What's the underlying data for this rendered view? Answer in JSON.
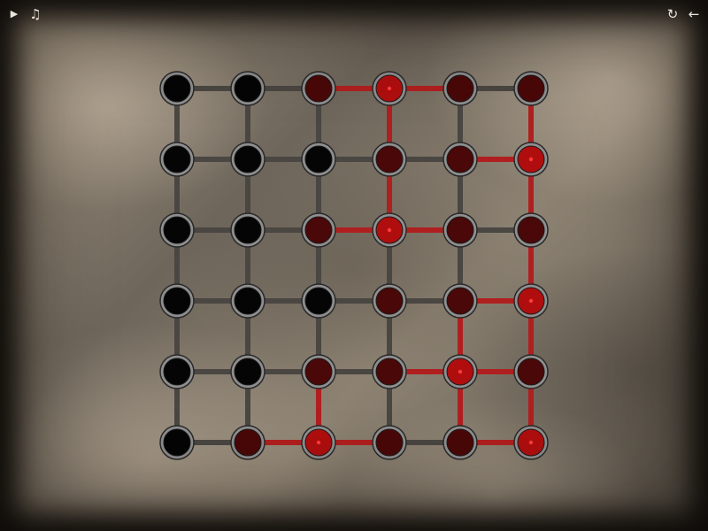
{
  "toolbar": {
    "play_glyph": "▶",
    "music_glyph": "♫",
    "restart_glyph": "↻",
    "back_glyph": "←"
  },
  "colors": {
    "edge_off": "#4a4642",
    "edge_on": "#b01f1f",
    "node_ring": "#8f8f8f",
    "node_off": "#050505",
    "node_dim": "#4a0808",
    "node_lit": "#b00e0e",
    "lit_dot": "#ff3a3a"
  },
  "grid": {
    "rows": 6,
    "cols": 6,
    "nodes": [
      [
        "off",
        "off",
        "dim",
        "lit",
        "dim",
        "dim"
      ],
      [
        "off",
        "off",
        "off",
        "dim",
        "dim",
        "lit"
      ],
      [
        "off",
        "off",
        "dim",
        "lit",
        "dim",
        "dim"
      ],
      [
        "off",
        "off",
        "off",
        "dim",
        "dim",
        "lit"
      ],
      [
        "off",
        "off",
        "dim",
        "dim",
        "lit",
        "dim"
      ],
      [
        "off",
        "dim",
        "lit",
        "dim",
        "dim",
        "lit"
      ]
    ],
    "h_edges": [
      [
        0,
        0,
        1,
        1,
        0
      ],
      [
        0,
        0,
        0,
        0,
        1
      ],
      [
        0,
        0,
        1,
        1,
        0
      ],
      [
        0,
        0,
        0,
        0,
        1
      ],
      [
        0,
        0,
        0,
        1,
        1
      ],
      [
        0,
        1,
        1,
        0,
        1
      ]
    ],
    "v_edges": [
      [
        0,
        0,
        0,
        1,
        0,
        1
      ],
      [
        0,
        0,
        0,
        1,
        0,
        1
      ],
      [
        0,
        0,
        0,
        0,
        0,
        1
      ],
      [
        0,
        0,
        0,
        0,
        1,
        1
      ],
      [
        0,
        0,
        1,
        0,
        1,
        1
      ]
    ]
  }
}
